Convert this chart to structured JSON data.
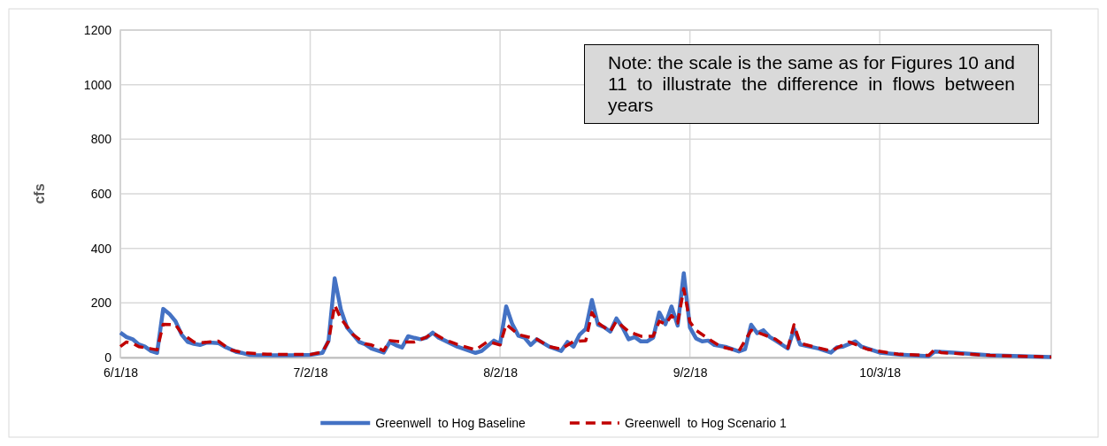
{
  "chart_data": {
    "type": "line",
    "ylabel": "cfs",
    "xlim": [
      "2018-06-01",
      "2018-10-31"
    ],
    "xticks": [
      {
        "value": "2018-06-01",
        "label": "6/1/18"
      },
      {
        "value": "2018-07-02",
        "label": "7/2/18"
      },
      {
        "value": "2018-08-02",
        "label": "8/2/18"
      },
      {
        "value": "2018-09-02",
        "label": "9/2/18"
      },
      {
        "value": "2018-10-03",
        "label": "10/3/18"
      }
    ],
    "ylim": [
      0,
      1200
    ],
    "yticks": [
      0,
      200,
      400,
      600,
      800,
      1000,
      1200
    ],
    "grid": true,
    "legend": "bottom",
    "marker": "none",
    "annotations": [
      "Note: the scale is the same as for Figures 10 and 11 to illustrate the difference in flows between years"
    ],
    "series": [
      {
        "name": "Greenwell  to Hog Baseline",
        "color": "#4472c4",
        "line_style": "solid",
        "x": [
          "2018-06-01",
          "2018-06-02",
          "2018-06-03",
          "2018-06-04",
          "2018-06-05",
          "2018-06-06",
          "2018-06-07",
          "2018-06-08",
          "2018-06-09",
          "2018-06-10",
          "2018-06-11",
          "2018-06-12",
          "2018-06-13",
          "2018-06-14",
          "2018-06-15",
          "2018-06-16",
          "2018-06-17",
          "2018-06-18",
          "2018-06-19",
          "2018-06-20",
          "2018-06-21",
          "2018-06-22",
          "2018-06-23",
          "2018-06-26",
          "2018-06-29",
          "2018-07-02",
          "2018-07-04",
          "2018-07-05",
          "2018-07-06",
          "2018-07-07",
          "2018-07-08",
          "2018-07-09",
          "2018-07-10",
          "2018-07-11",
          "2018-07-12",
          "2018-07-14",
          "2018-07-15",
          "2018-07-16",
          "2018-07-17",
          "2018-07-18",
          "2018-07-19",
          "2018-07-20",
          "2018-07-21",
          "2018-07-22",
          "2018-07-23",
          "2018-07-24",
          "2018-07-26",
          "2018-07-29",
          "2018-07-30",
          "2018-08-01",
          "2018-08-02",
          "2018-08-03",
          "2018-08-04",
          "2018-08-05",
          "2018-08-06",
          "2018-08-07",
          "2018-08-08",
          "2018-08-10",
          "2018-08-12",
          "2018-08-13",
          "2018-08-14",
          "2018-08-15",
          "2018-08-16",
          "2018-08-17",
          "2018-08-18",
          "2018-08-19",
          "2018-08-20",
          "2018-08-21",
          "2018-08-22",
          "2018-08-23",
          "2018-08-24",
          "2018-08-25",
          "2018-08-26",
          "2018-08-27",
          "2018-08-28",
          "2018-08-29",
          "2018-08-30",
          "2018-08-31",
          "2018-09-01",
          "2018-09-02",
          "2018-09-03",
          "2018-09-04",
          "2018-09-05",
          "2018-09-06",
          "2018-09-08",
          "2018-09-10",
          "2018-09-11",
          "2018-09-12",
          "2018-09-13",
          "2018-09-14",
          "2018-09-15",
          "2018-09-16",
          "2018-09-18",
          "2018-09-19",
          "2018-09-20",
          "2018-09-23",
          "2018-09-25",
          "2018-09-26",
          "2018-09-27",
          "2018-09-29",
          "2018-09-30",
          "2018-10-03",
          "2018-10-06",
          "2018-10-11",
          "2018-10-12",
          "2018-10-15",
          "2018-10-21",
          "2018-10-31"
        ],
        "values": [
          91,
          75,
          67,
          48,
          40,
          24,
          17,
          178,
          160,
          133,
          84,
          57,
          50,
          46,
          54,
          54,
          53,
          40,
          30,
          20,
          16,
          10,
          9,
          8,
          8,
          10,
          17,
          62,
          290,
          176,
          110,
          84,
          57,
          48,
          33,
          18,
          57,
          45,
          37,
          78,
          72,
          67,
          73,
          91,
          72,
          62,
          40,
          17,
          24,
          62,
          50,
          187,
          122,
          80,
          73,
          46,
          67,
          40,
          24,
          57,
          40,
          84,
          105,
          211,
          120,
          111,
          95,
          143,
          110,
          67,
          75,
          59,
          59,
          73,
          165,
          122,
          187,
          117,
          309,
          110,
          70,
          59,
          62,
          46,
          38,
          22,
          30,
          120,
          89,
          100,
          76,
          62,
          33,
          105,
          48,
          33,
          18,
          37,
          40,
          59,
          40,
          18,
          11,
          5,
          22,
          18,
          8,
          2
        ]
      },
      {
        "name": "Greenwell  to Hog Scenario 1",
        "color": "#c00000",
        "line_style": "dashed",
        "x": [
          "2018-06-01",
          "2018-06-02",
          "2018-06-03",
          "2018-06-04",
          "2018-06-06",
          "2018-06-07",
          "2018-06-08",
          "2018-06-10",
          "2018-06-11",
          "2018-06-13",
          "2018-06-14",
          "2018-06-17",
          "2018-06-19",
          "2018-06-21",
          "2018-06-25",
          "2018-07-02",
          "2018-07-04",
          "2018-07-05",
          "2018-07-06",
          "2018-07-07",
          "2018-07-09",
          "2018-07-11",
          "2018-07-12",
          "2018-07-14",
          "2018-07-15",
          "2018-07-17",
          "2018-07-19",
          "2018-07-21",
          "2018-07-22",
          "2018-07-24",
          "2018-07-26",
          "2018-07-29",
          "2018-07-31",
          "2018-08-02",
          "2018-08-03",
          "2018-08-05",
          "2018-08-08",
          "2018-08-10",
          "2018-08-12",
          "2018-08-14",
          "2018-08-16",
          "2018-08-17",
          "2018-08-18",
          "2018-08-20",
          "2018-08-21",
          "2018-08-23",
          "2018-08-25",
          "2018-08-27",
          "2018-08-28",
          "2018-08-29",
          "2018-08-30",
          "2018-08-31",
          "2018-09-01",
          "2018-09-02",
          "2018-09-03",
          "2018-09-05",
          "2018-09-07",
          "2018-09-10",
          "2018-09-12",
          "2018-09-14",
          "2018-09-16",
          "2018-09-18",
          "2018-09-19",
          "2018-09-20",
          "2018-09-25",
          "2018-09-28",
          "2018-10-01",
          "2018-10-06",
          "2018-10-11",
          "2018-10-12",
          "2018-10-13",
          "2018-10-21",
          "2018-10-31"
        ],
        "values": [
          40,
          57,
          52,
          40,
          32,
          28,
          122,
          120,
          89,
          57,
          54,
          60,
          28,
          18,
          12,
          11,
          20,
          60,
          192,
          143,
          84,
          50,
          46,
          25,
          62,
          57,
          57,
          75,
          91,
          65,
          48,
          28,
          59,
          46,
          122,
          84,
          67,
          40,
          31,
          59,
          62,
          165,
          127,
          95,
          133,
          95,
          78,
          78,
          133,
          122,
          154,
          127,
          252,
          130,
          100,
          69,
          40,
          24,
          100,
          84,
          67,
          35,
          120,
          52,
          24,
          57,
          30,
          12,
          8,
          30,
          18,
          8,
          2
        ]
      }
    ]
  }
}
